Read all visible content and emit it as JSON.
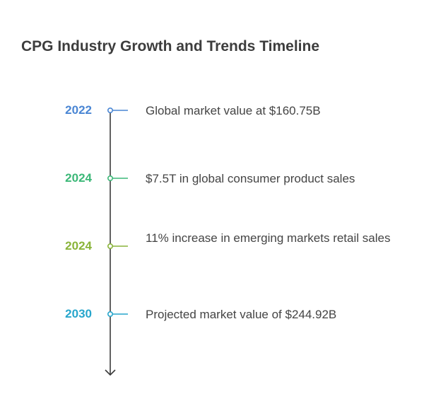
{
  "title": "CPG Industry Growth and Trends Timeline",
  "events": [
    {
      "year": "2022",
      "text": "Global market value at $160.75B",
      "color": "#4a86d4"
    },
    {
      "year": "2024",
      "text": "$7.5T in global consumer product sales",
      "color": "#3cb878"
    },
    {
      "year": "2024",
      "text": "11% increase in emerging markets retail sales",
      "color": "#8ab43a"
    },
    {
      "year": "2030",
      "text": "Projected market value of $244.92B",
      "color": "#27a6cc"
    }
  ],
  "axis_color": "#3a3a3a"
}
